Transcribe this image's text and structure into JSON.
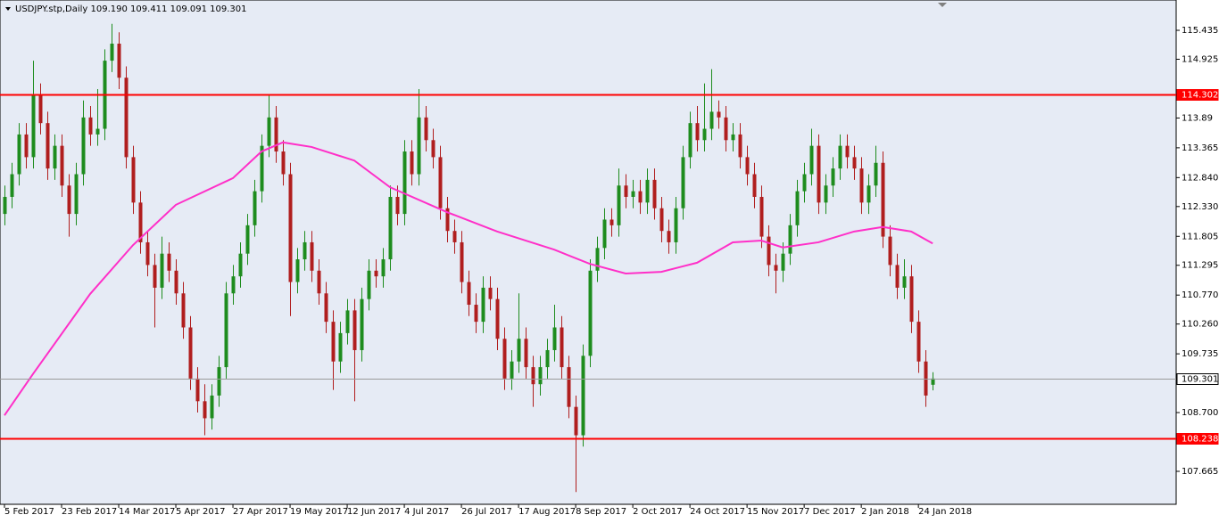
{
  "chart_data": {
    "type": "candlestick",
    "title": "USDJPY.stp,Daily  109.190 109.411 109.091 109.301",
    "up_color": "#1e8c1e",
    "down_color": "#b01e1e",
    "candles": [
      [
        112.2,
        112.7,
        112.0,
        112.5
      ],
      [
        112.5,
        113.1,
        112.3,
        112.9
      ],
      [
        112.9,
        113.8,
        112.7,
        113.6
      ],
      [
        113.6,
        113.8,
        113.0,
        113.2
      ],
      [
        113.2,
        114.9,
        113.0,
        114.3
      ],
      [
        114.3,
        114.5,
        113.6,
        113.8
      ],
      [
        113.8,
        114.0,
        112.8,
        113.0
      ],
      [
        113.0,
        113.6,
        112.8,
        113.4
      ],
      [
        113.4,
        113.6,
        112.5,
        112.7
      ],
      [
        112.7,
        112.9,
        111.8,
        112.2
      ],
      [
        112.2,
        113.1,
        112.0,
        112.9
      ],
      [
        112.9,
        114.2,
        112.7,
        113.9
      ],
      [
        113.9,
        114.1,
        113.4,
        113.6
      ],
      [
        113.6,
        114.4,
        113.4,
        113.7
      ],
      [
        113.7,
        115.1,
        113.5,
        114.9
      ],
      [
        114.9,
        115.55,
        114.7,
        115.2
      ],
      [
        115.2,
        115.4,
        114.4,
        114.6
      ],
      [
        114.6,
        114.8,
        113.0,
        113.2
      ],
      [
        113.2,
        113.4,
        112.2,
        112.4
      ],
      [
        112.4,
        112.6,
        111.5,
        111.7
      ],
      [
        111.7,
        111.9,
        111.1,
        111.3
      ],
      [
        111.3,
        111.5,
        110.2,
        110.9
      ],
      [
        110.9,
        111.8,
        110.7,
        111.5
      ],
      [
        111.5,
        111.7,
        111.0,
        111.2
      ],
      [
        111.2,
        111.4,
        110.6,
        110.8
      ],
      [
        110.8,
        111.0,
        110.0,
        110.2
      ],
      [
        110.2,
        110.4,
        109.1,
        109.3
      ],
      [
        109.3,
        109.5,
        108.7,
        108.9
      ],
      [
        108.9,
        109.2,
        108.3,
        108.6
      ],
      [
        108.6,
        109.2,
        108.4,
        109.0
      ],
      [
        109.0,
        109.7,
        108.8,
        109.5
      ],
      [
        109.5,
        111.0,
        109.3,
        110.8
      ],
      [
        110.8,
        111.3,
        110.6,
        111.1
      ],
      [
        111.1,
        111.7,
        110.9,
        111.5
      ],
      [
        111.5,
        112.2,
        111.3,
        112.0
      ],
      [
        112.0,
        112.8,
        111.8,
        112.6
      ],
      [
        112.6,
        113.6,
        112.4,
        113.4
      ],
      [
        113.4,
        114.3,
        113.2,
        113.9
      ],
      [
        113.9,
        114.1,
        113.1,
        113.3
      ],
      [
        113.3,
        113.5,
        112.7,
        112.9
      ],
      [
        112.9,
        113.1,
        110.4,
        111.0
      ],
      [
        111.0,
        111.6,
        110.8,
        111.4
      ],
      [
        111.4,
        111.9,
        111.2,
        111.7
      ],
      [
        111.7,
        111.9,
        111.0,
        111.2
      ],
      [
        111.2,
        111.4,
        110.6,
        110.8
      ],
      [
        110.8,
        111.0,
        110.1,
        110.3
      ],
      [
        110.3,
        110.5,
        109.1,
        109.6
      ],
      [
        109.6,
        110.3,
        109.4,
        110.1
      ],
      [
        110.1,
        110.7,
        109.9,
        110.5
      ],
      [
        110.5,
        110.7,
        108.9,
        109.8
      ],
      [
        109.8,
        110.9,
        109.6,
        110.7
      ],
      [
        110.7,
        111.4,
        110.5,
        111.2
      ],
      [
        111.2,
        111.4,
        110.9,
        111.1
      ],
      [
        111.1,
        111.6,
        110.9,
        111.4
      ],
      [
        111.4,
        112.7,
        111.2,
        112.5
      ],
      [
        112.5,
        112.7,
        112.0,
        112.2
      ],
      [
        112.2,
        113.5,
        112.0,
        113.3
      ],
      [
        113.3,
        113.5,
        112.7,
        112.9
      ],
      [
        112.9,
        114.4,
        112.7,
        113.9
      ],
      [
        113.9,
        114.1,
        113.3,
        113.5
      ],
      [
        113.5,
        113.7,
        113.0,
        113.2
      ],
      [
        113.2,
        113.4,
        112.1,
        112.3
      ],
      [
        112.3,
        112.5,
        111.7,
        111.9
      ],
      [
        111.9,
        112.1,
        111.5,
        111.7
      ],
      [
        111.7,
        111.9,
        110.8,
        111.0
      ],
      [
        111.0,
        111.2,
        110.4,
        110.6
      ],
      [
        110.6,
        110.8,
        110.1,
        110.3
      ],
      [
        110.3,
        111.1,
        110.1,
        110.9
      ],
      [
        110.9,
        111.1,
        110.5,
        110.7
      ],
      [
        110.7,
        110.9,
        109.8,
        110.0
      ],
      [
        110.0,
        110.2,
        109.1,
        109.3
      ],
      [
        109.3,
        109.8,
        109.1,
        109.6
      ],
      [
        109.6,
        110.8,
        109.4,
        110.0
      ],
      [
        110.0,
        110.2,
        109.3,
        109.5
      ],
      [
        109.5,
        109.7,
        108.8,
        109.2
      ],
      [
        109.2,
        109.7,
        109.0,
        109.5
      ],
      [
        109.5,
        110.0,
        109.3,
        109.8
      ],
      [
        109.8,
        110.6,
        109.6,
        110.2
      ],
      [
        110.2,
        110.4,
        109.3,
        109.5
      ],
      [
        109.5,
        109.7,
        108.6,
        108.8
      ],
      [
        108.8,
        109.0,
        107.3,
        108.3
      ],
      [
        108.3,
        109.9,
        108.1,
        109.7
      ],
      [
        109.7,
        111.4,
        109.5,
        111.2
      ],
      [
        111.2,
        111.8,
        111.0,
        111.6
      ],
      [
        111.6,
        112.3,
        111.4,
        112.1
      ],
      [
        112.1,
        112.3,
        111.8,
        112.0
      ],
      [
        112.0,
        113.0,
        111.8,
        112.7
      ],
      [
        112.7,
        112.9,
        112.3,
        112.5
      ],
      [
        112.5,
        112.8,
        112.3,
        112.6
      ],
      [
        112.6,
        112.8,
        112.2,
        112.4
      ],
      [
        112.4,
        113.0,
        112.2,
        112.8
      ],
      [
        112.8,
        113.0,
        112.1,
        112.3
      ],
      [
        112.3,
        112.5,
        111.7,
        111.9
      ],
      [
        111.9,
        112.1,
        111.5,
        111.7
      ],
      [
        111.7,
        112.5,
        111.5,
        112.3
      ],
      [
        112.3,
        113.4,
        112.1,
        113.2
      ],
      [
        113.2,
        114.0,
        113.0,
        113.8
      ],
      [
        113.8,
        114.1,
        113.3,
        113.5
      ],
      [
        113.5,
        114.5,
        113.3,
        113.7
      ],
      [
        113.7,
        114.75,
        113.5,
        114.0
      ],
      [
        114.0,
        114.2,
        113.7,
        113.9
      ],
      [
        113.9,
        114.1,
        113.3,
        113.5
      ],
      [
        113.5,
        113.8,
        113.3,
        113.6
      ],
      [
        113.6,
        113.8,
        113.0,
        113.2
      ],
      [
        113.2,
        113.4,
        112.7,
        112.9
      ],
      [
        112.9,
        113.1,
        112.3,
        112.5
      ],
      [
        112.5,
        112.7,
        111.6,
        111.8
      ],
      [
        111.8,
        112.0,
        111.1,
        111.3
      ],
      [
        111.3,
        111.5,
        110.8,
        111.2
      ],
      [
        111.2,
        111.7,
        111.0,
        111.5
      ],
      [
        111.5,
        112.2,
        111.3,
        112.0
      ],
      [
        112.0,
        112.8,
        111.8,
        112.6
      ],
      [
        112.6,
        113.1,
        112.4,
        112.9
      ],
      [
        112.9,
        113.7,
        112.7,
        113.4
      ],
      [
        113.4,
        113.6,
        112.2,
        112.4
      ],
      [
        112.4,
        112.9,
        112.2,
        112.7
      ],
      [
        112.7,
        113.2,
        112.5,
        113.0
      ],
      [
        113.0,
        113.6,
        112.8,
        113.4
      ],
      [
        113.4,
        113.6,
        113.0,
        113.2
      ],
      [
        113.2,
        113.4,
        112.8,
        113.0
      ],
      [
        113.0,
        113.2,
        112.2,
        112.4
      ],
      [
        112.4,
        112.9,
        112.2,
        112.7
      ],
      [
        112.7,
        113.4,
        112.5,
        113.1
      ],
      [
        113.1,
        113.3,
        111.6,
        111.8
      ],
      [
        111.8,
        112.0,
        111.1,
        111.3
      ],
      [
        111.3,
        111.5,
        110.7,
        110.9
      ],
      [
        110.9,
        111.4,
        110.7,
        111.1
      ],
      [
        111.1,
        111.3,
        110.1,
        110.3
      ],
      [
        110.3,
        110.5,
        109.4,
        109.6
      ],
      [
        109.6,
        109.8,
        108.8,
        109.0
      ],
      [
        109.19,
        109.411,
        109.091,
        109.301
      ]
    ],
    "xlim": [
      -0.625,
      164.1
    ],
    "xticks": [
      {
        "value": 0,
        "label": "5 Feb 2017"
      },
      {
        "value": 8,
        "label": "23 Feb 2017"
      },
      {
        "value": 16,
        "label": "14 Mar 2017"
      },
      {
        "value": 24,
        "label": "5 Apr 2017"
      },
      {
        "value": 32,
        "label": "27 Apr 2017"
      },
      {
        "value": 40,
        "label": "19 May 2017"
      },
      {
        "value": 48,
        "label": "12 Jun 2017"
      },
      {
        "value": 56,
        "label": "4 Jul 2017"
      },
      {
        "value": 64,
        "label": "26 Jul 2017"
      },
      {
        "value": 72,
        "label": "17 Aug 2017"
      },
      {
        "value": 80,
        "label": "8 Sep 2017"
      },
      {
        "value": 88,
        "label": "2 Oct 2017"
      },
      {
        "value": 96,
        "label": "24 Oct 2017"
      },
      {
        "value": 104,
        "label": "15 Nov 2017"
      },
      {
        "value": 112,
        "label": "7 Dec 2017"
      },
      {
        "value": 120,
        "label": "2 Jan 2018"
      },
      {
        "value": 128,
        "label": "24 Jan 2018"
      }
    ],
    "ylim": [
      107.084,
      115.969
    ],
    "yticks": [
      115.435,
      114.925,
      113.89,
      113.365,
      {
        "value": 112.84,
        "label": "112.840"
      },
      {
        "value": 112.33,
        "label": "112.330"
      },
      111.805,
      111.295,
      {
        "value": 110.77,
        "label": "110.770"
      },
      {
        "value": 110.26,
        "label": "110.260"
      },
      109.735,
      {
        "value": 108.7,
        "label": "108.700"
      },
      107.665
    ],
    "grid": false,
    "moving_average": {
      "color": "#ff2fc8",
      "x": [
        0,
        4,
        12,
        18,
        24,
        32,
        36,
        39,
        43,
        49,
        54,
        62,
        69,
        77,
        82,
        87,
        92,
        97,
        102,
        106,
        109,
        114,
        119,
        123,
        127,
        130
      ],
      "values": [
        108.65,
        109.38,
        110.79,
        111.65,
        112.36,
        112.83,
        113.3,
        113.46,
        113.38,
        113.14,
        112.67,
        112.23,
        111.89,
        111.57,
        111.32,
        111.15,
        111.18,
        111.34,
        111.7,
        111.73,
        111.61,
        111.7,
        111.89,
        111.97,
        111.89,
        111.68
      ]
    },
    "lines": [
      {
        "value": 114.302,
        "color": "#ff0000"
      },
      {
        "value": 108.238,
        "color": "#ff0000"
      },
      {
        "value": 109.301,
        "color": "#9a9a9a"
      }
    ]
  }
}
